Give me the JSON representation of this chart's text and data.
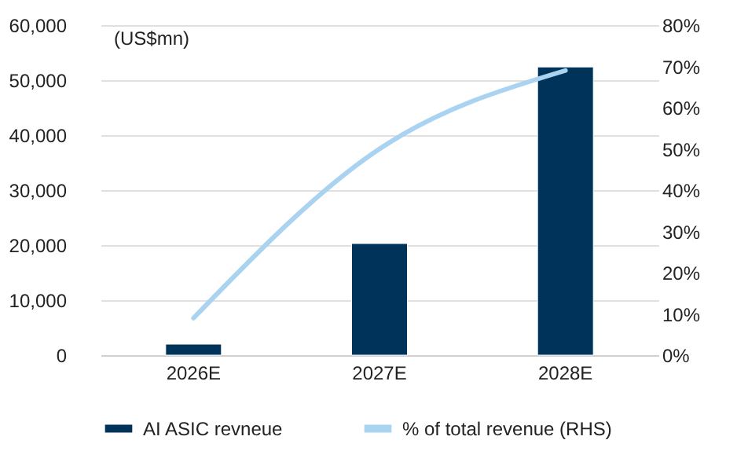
{
  "chart_data": {
    "type": "bar",
    "ylabel": "(US$mn)",
    "categories": [
      "2026E",
      "2027E",
      "2028E"
    ],
    "series": [
      {
        "name": "AI ASIC revneue",
        "color": "#003359",
        "values": [
          2000,
          20300,
          52400
        ]
      },
      {
        "name": "% of total revenue (RHS)",
        "type": "line",
        "axis": "y2",
        "color": "#a9d3f1",
        "values": [
          9,
          50,
          69
        ]
      }
    ],
    "ylim": [
      0,
      60000
    ],
    "yticks": [
      0,
      {
        "value": 10000,
        "label": "10,000"
      },
      {
        "value": 20000,
        "label": "20,000"
      },
      {
        "value": 30000,
        "label": "30,000"
      },
      {
        "value": 40000,
        "label": "40,000"
      },
      {
        "value": 50000,
        "label": "50,000"
      },
      {
        "value": 60000,
        "label": "60,000"
      }
    ],
    "y2lim": [
      0,
      80
    ],
    "y2ticks": [
      {
        "value": 0,
        "label": "0%"
      },
      {
        "value": 10,
        "label": "10%"
      },
      {
        "value": 20,
        "label": "20%"
      },
      {
        "value": 30,
        "label": "30%"
      },
      {
        "value": 40,
        "label": "40%"
      },
      {
        "value": 50,
        "label": "50%"
      },
      {
        "value": 60,
        "label": "60%"
      },
      {
        "value": 70,
        "label": "70%"
      },
      {
        "value": 80,
        "label": "80%"
      }
    ],
    "grid": "y",
    "legend": "bottom"
  }
}
